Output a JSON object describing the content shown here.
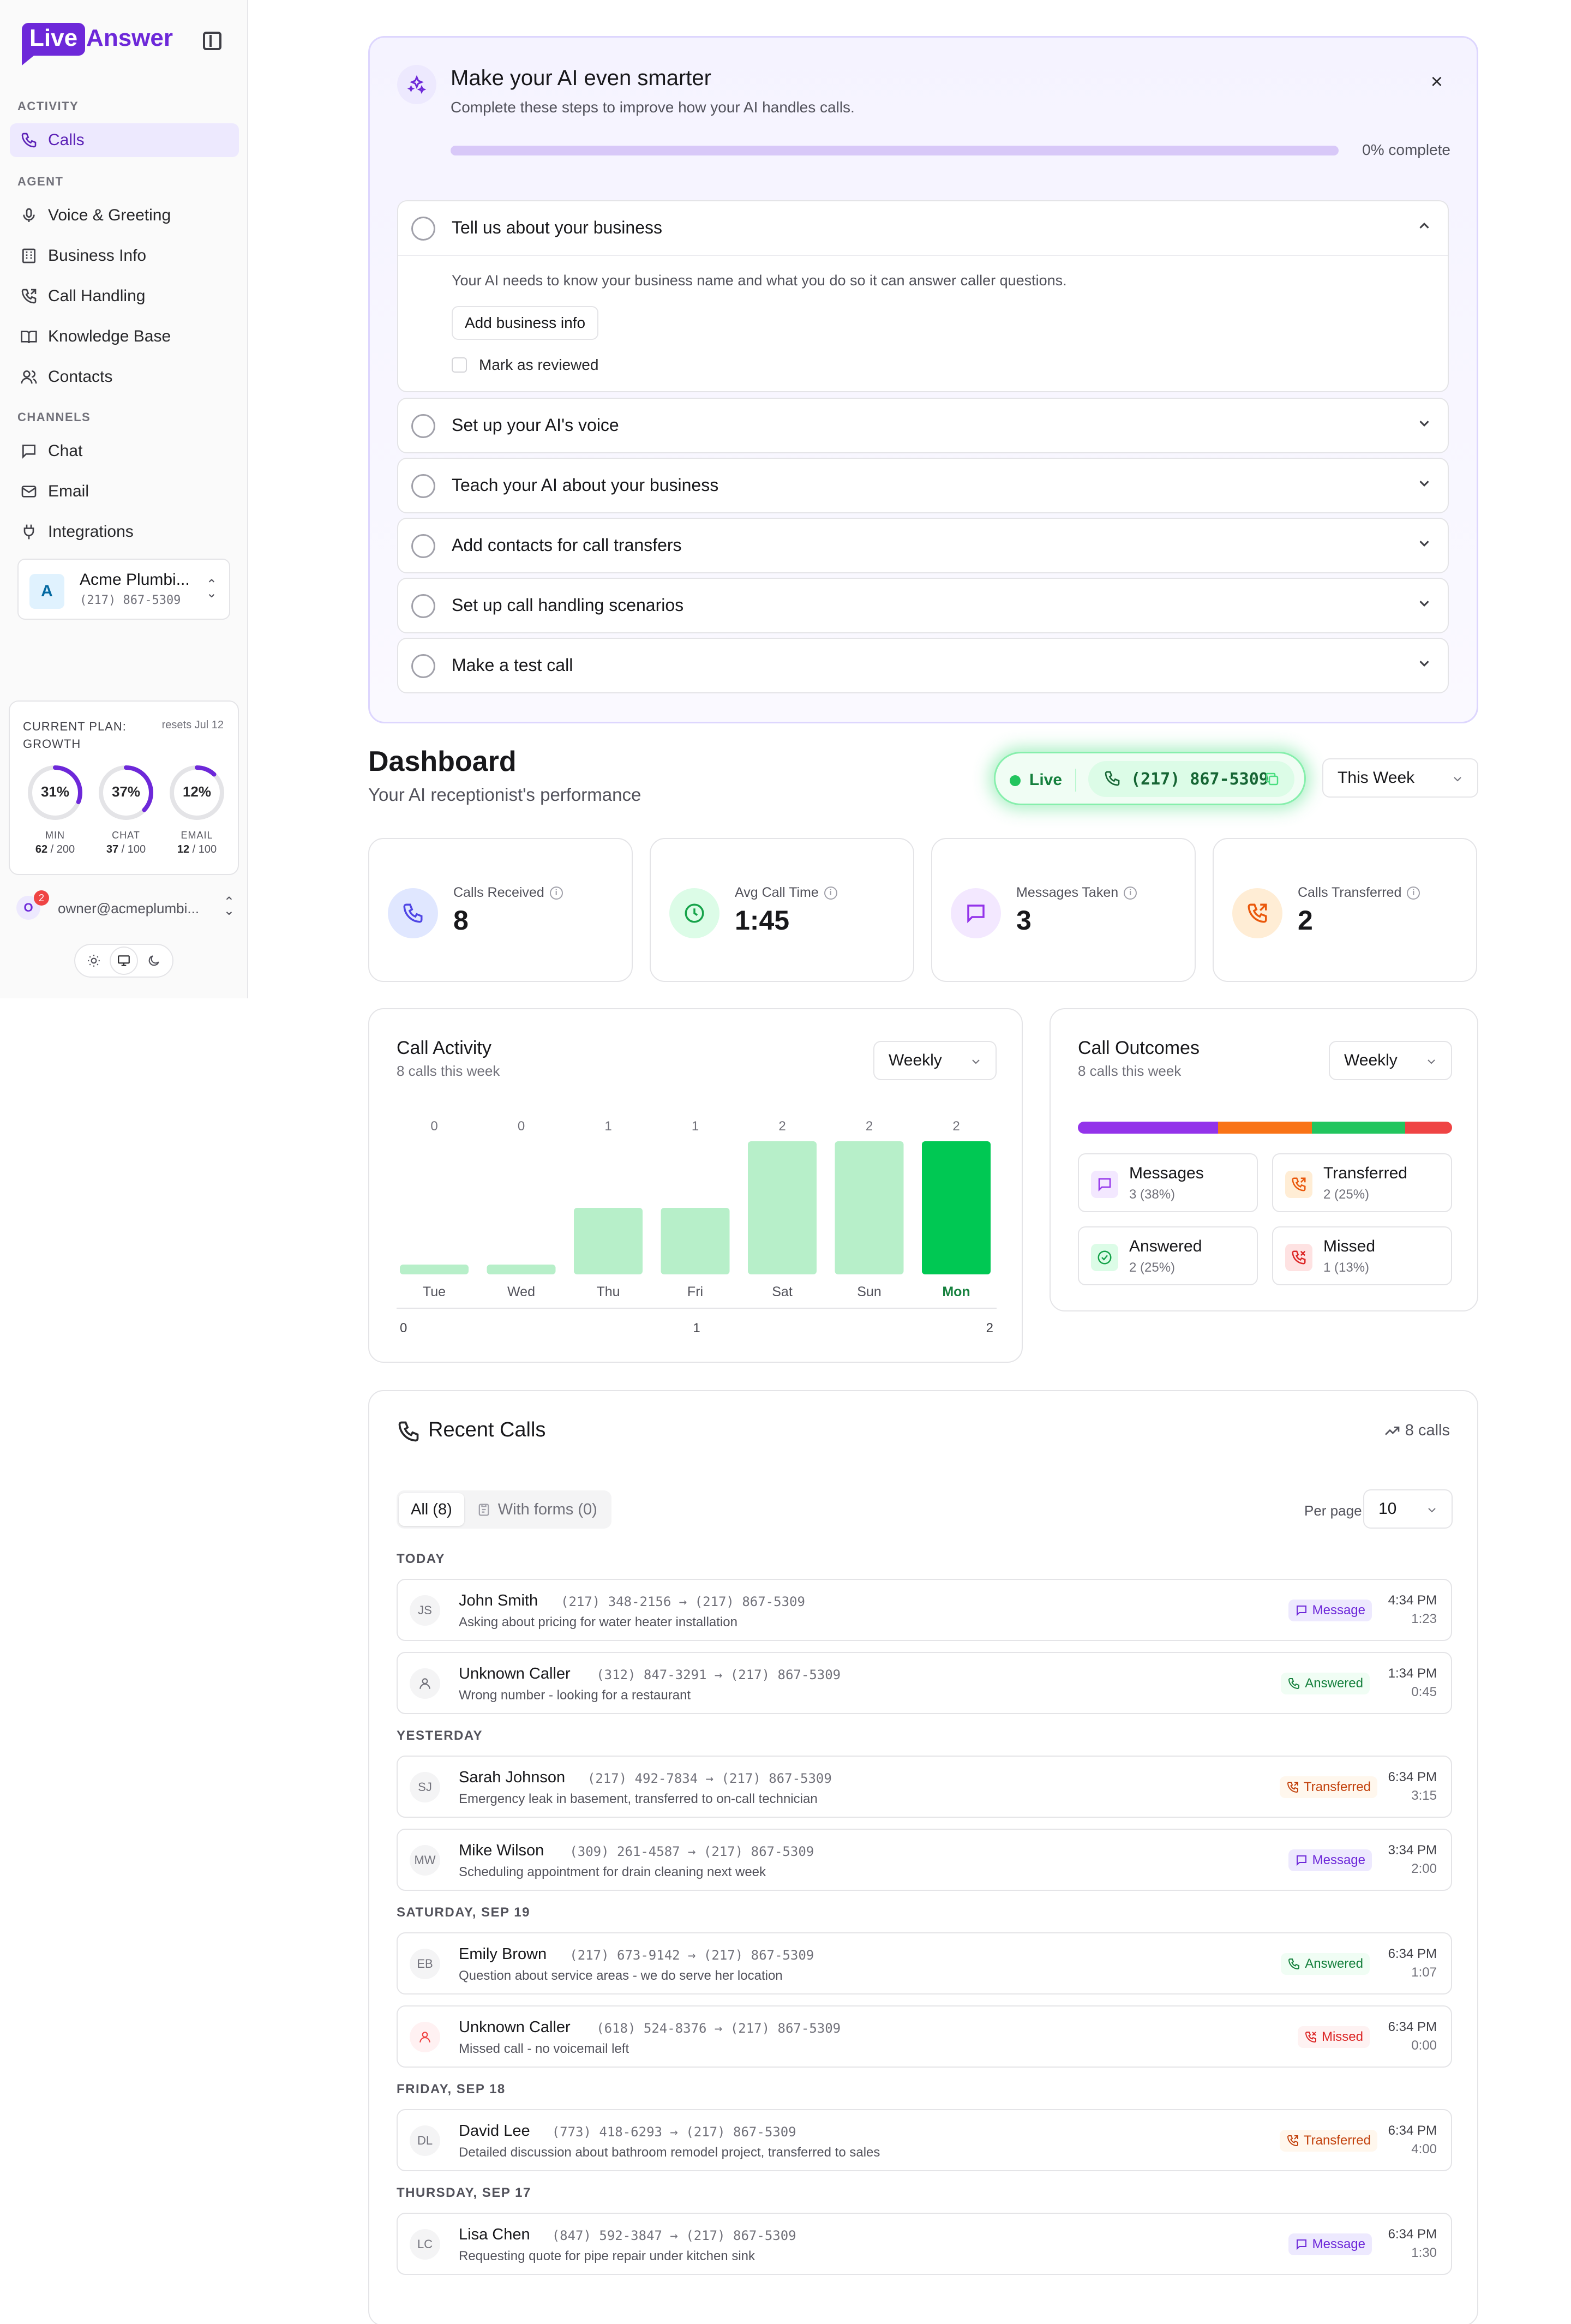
{
  "sidebar": {
    "logo": {
      "part1": "Live",
      "part2": "Answer"
    },
    "sections": {
      "activity": "ACTIVITY",
      "agent": "AGENT",
      "channels": "CHANNELS"
    },
    "items": {
      "calls": "Calls",
      "voice": "Voice & Greeting",
      "business_info": "Business Info",
      "call_handling": "Call Handling",
      "knowledge_base": "Knowledge Base",
      "contacts": "Contacts",
      "chat": "Chat",
      "email": "Email",
      "integrations": "Integrations"
    },
    "business": {
      "initial": "A",
      "name": "Acme Plumbi...",
      "phone": "(217) 867-5309"
    },
    "plan": {
      "label_line1": "CURRENT PLAN:",
      "label_line2": "GROWTH",
      "resets": "resets Jul 12",
      "gauges": [
        {
          "pct": "31%",
          "fraction": 0.31,
          "name": "MIN",
          "used": "62",
          "limit": " / 200"
        },
        {
          "pct": "37%",
          "fraction": 0.37,
          "name": "CHAT",
          "used": "37",
          "limit": " / 100"
        },
        {
          "pct": "12%",
          "fraction": 0.12,
          "name": "EMAIL",
          "used": "12",
          "limit": " / 100"
        }
      ]
    },
    "user": {
      "initial": "O",
      "badge": "2",
      "email": "owner@acmeplumbi..."
    }
  },
  "onboarding": {
    "title": "Make your AI even smarter",
    "subtitle": "Complete these steps to improve how your AI handles calls.",
    "progress_fraction": 0,
    "progress_label": "0% complete",
    "close": "×",
    "steps": [
      {
        "label": "Tell us about your business"
      },
      {
        "label": "Set up your AI's voice"
      },
      {
        "label": "Teach your AI about your business"
      },
      {
        "label": "Add contacts for call transfers"
      },
      {
        "label": "Set up call handling scenarios"
      },
      {
        "label": "Make a test call"
      }
    ],
    "expanded": {
      "description": "Your AI needs to know your business name and what you do so it can answer caller questions.",
      "button": "Add business info",
      "checkbox": "Mark as reviewed"
    }
  },
  "dashboard": {
    "title": "Dashboard",
    "subtitle": "Your AI receptionist's performance",
    "live_label": "Live",
    "live_phone": "(217) 867-5309",
    "range": "This Week",
    "stats": [
      {
        "label": "Calls Received",
        "value": "8"
      },
      {
        "label": "Avg Call Time",
        "value": "1:45"
      },
      {
        "label": "Messages Taken",
        "value": "3"
      },
      {
        "label": "Calls Transferred",
        "value": "2"
      }
    ]
  },
  "call_activity": {
    "title": "Call Activity",
    "subtitle": "8 calls this week",
    "period": "Weekly"
  },
  "chart_data": {
    "type": "bar",
    "categories": [
      "Tue",
      "Wed",
      "Thu",
      "Fri",
      "Sat",
      "Sun",
      "Mon"
    ],
    "values": [
      0,
      0,
      1,
      1,
      2,
      2,
      2
    ],
    "highlight_index": 6,
    "xlabel": "",
    "ylabel": "",
    "x_ticks": [
      "0",
      "1",
      "2"
    ],
    "ylim": [
      0,
      2
    ],
    "colors": {
      "bar": "#b7efc9",
      "highlight": "#00c853",
      "highlight_label": "#15803d"
    }
  },
  "call_outcomes": {
    "title": "Call Outcomes",
    "subtitle": "8 calls this week",
    "period": "Weekly",
    "segments": [
      {
        "name": "Messages",
        "fraction": 0.375,
        "color": "#9333ea"
      },
      {
        "name": "Transferred",
        "fraction": 0.25,
        "color": "#f97316"
      },
      {
        "name": "Answered",
        "fraction": 0.25,
        "color": "#22c55e"
      },
      {
        "name": "Missed",
        "fraction": 0.125,
        "color": "#ef4444"
      }
    ],
    "tiles": [
      {
        "name": "Messages",
        "count": "3 (38%)"
      },
      {
        "name": "Transferred",
        "count": "2 (25%)"
      },
      {
        "name": "Answered",
        "count": "2 (25%)"
      },
      {
        "name": "Missed",
        "count": "1 (13%)"
      }
    ]
  },
  "recent_calls": {
    "title": "Recent Calls",
    "count": "8 calls",
    "tabs": {
      "all": "All (8)",
      "forms": "With forms (0)"
    },
    "per_page_label": "Per page",
    "per_page": "10",
    "groups": [
      {
        "label": "TODAY",
        "calls": [
          {
            "initials": "JS",
            "name": "John Smith",
            "route": "(217) 348-2156 → (217) 867-5309",
            "summary": "Asking about pricing for water heater installation",
            "status": "Message",
            "time": "4:34 PM",
            "duration": "1:23"
          },
          {
            "initials": "",
            "name": "Unknown Caller",
            "route": "(312) 847-3291 → (217) 867-5309",
            "summary": "Wrong number - looking for a restaurant",
            "status": "Answered",
            "time": "1:34 PM",
            "duration": "0:45"
          }
        ]
      },
      {
        "label": "YESTERDAY",
        "calls": [
          {
            "initials": "SJ",
            "name": "Sarah Johnson",
            "route": "(217) 492-7834 → (217) 867-5309",
            "summary": "Emergency leak in basement, transferred to on-call technician",
            "status": "Transferred",
            "time": "6:34 PM",
            "duration": "3:15"
          },
          {
            "initials": "MW",
            "name": "Mike Wilson",
            "route": "(309) 261-4587 → (217) 867-5309",
            "summary": "Scheduling appointment for drain cleaning next week",
            "status": "Message",
            "time": "3:34 PM",
            "duration": "2:00"
          }
        ]
      },
      {
        "label": "SATURDAY, SEP 19",
        "calls": [
          {
            "initials": "EB",
            "name": "Emily Brown",
            "route": "(217) 673-9142 → (217) 867-5309",
            "summary": "Question about service areas - we do serve her location",
            "status": "Answered",
            "time": "6:34 PM",
            "duration": "1:07"
          },
          {
            "initials": "",
            "name": "Unknown Caller",
            "route": "(618) 524-8376 → (217) 867-5309",
            "summary": "Missed call - no voicemail left",
            "status": "Missed",
            "time": "6:34 PM",
            "duration": "0:00"
          }
        ]
      },
      {
        "label": "FRIDAY, SEP 18",
        "calls": [
          {
            "initials": "DL",
            "name": "David Lee",
            "route": "(773) 418-6293 → (217) 867-5309",
            "summary": "Detailed discussion about bathroom remodel project, transferred to sales",
            "status": "Transferred",
            "time": "6:34 PM",
            "duration": "4:00"
          }
        ]
      },
      {
        "label": "THURSDAY, SEP 17",
        "calls": [
          {
            "initials": "LC",
            "name": "Lisa Chen",
            "route": "(847) 592-3847 → (217) 867-5309",
            "summary": "Requesting quote for pipe repair under kitchen sink",
            "status": "Message",
            "time": "6:34 PM",
            "duration": "1:30"
          }
        ]
      }
    ]
  }
}
